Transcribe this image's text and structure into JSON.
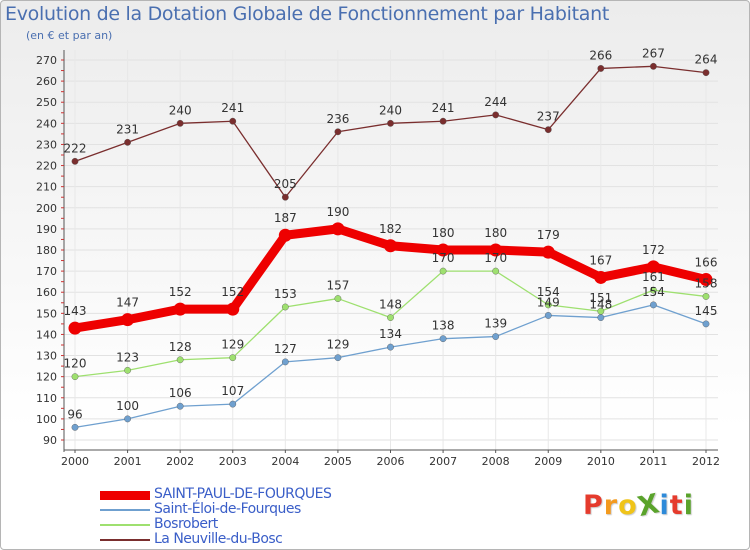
{
  "title": "Evolution de la Dotation Globale de Fonctionnement par Habitant",
  "subtitle": "(en € et par an)",
  "logo": {
    "text": "ProXiti",
    "letters": [
      "P",
      "r",
      "o",
      "X",
      "i",
      "t",
      "i"
    ],
    "colors": [
      "#e53b2d",
      "#f39a1e",
      "#f0c419",
      "#5aa32b",
      "#2d8ad9",
      "#e53b2d",
      "#5aa32b"
    ]
  },
  "chart_data": {
    "type": "line",
    "title": "Evolution de la Dotation Globale de Fonctionnement par Habitant",
    "subtitle": "(en € et par an)",
    "xlabel": "",
    "ylabel": "",
    "categories": [
      "2000",
      "2001",
      "2002",
      "2003",
      "2004",
      "2005",
      "2006",
      "2007",
      "2008",
      "2009",
      "2010",
      "2011",
      "2012"
    ],
    "ylim": [
      90,
      270
    ],
    "yticks": [
      90,
      100,
      110,
      120,
      130,
      140,
      150,
      160,
      170,
      180,
      190,
      200,
      210,
      220,
      230,
      240,
      250,
      260,
      270
    ],
    "grid": true,
    "legend_position": "bottom-left",
    "series": [
      {
        "name": "SAINT-PAUL-DE-FOURQUES",
        "color": "#ee0000",
        "bold": true,
        "values": [
          143,
          147,
          152,
          152,
          187,
          190,
          182,
          180,
          180,
          179,
          167,
          172,
          166
        ]
      },
      {
        "name": "Saint-Éloi-de-Fourques",
        "color": "#6fa0cf",
        "bold": false,
        "values": [
          96,
          100,
          106,
          107,
          127,
          129,
          134,
          138,
          139,
          149,
          148,
          154,
          145
        ]
      },
      {
        "name": "Bosrobert",
        "color": "#9ee06f",
        "bold": false,
        "values": [
          120,
          123,
          128,
          129,
          153,
          157,
          148,
          170,
          170,
          154,
          151,
          161,
          158
        ]
      },
      {
        "name": "La Neuville-du-Bosc",
        "color": "#7a2e2e",
        "bold": false,
        "values": [
          222,
          231,
          240,
          241,
          205,
          236,
          240,
          241,
          244,
          237,
          266,
          267,
          264
        ]
      }
    ]
  }
}
